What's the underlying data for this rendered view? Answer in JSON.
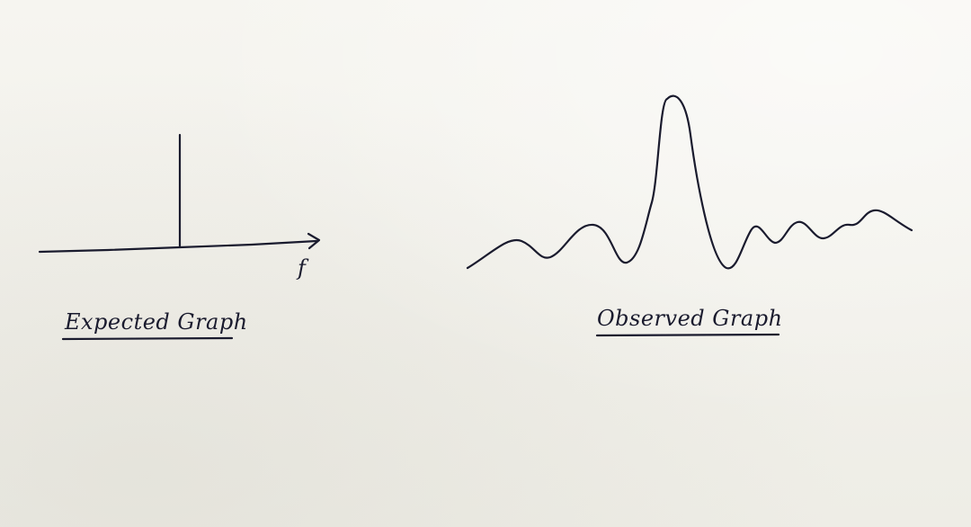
{
  "expected": {
    "caption": "Expected Graph",
    "axis_label": "f"
  },
  "observed": {
    "caption": "Observed Graph"
  },
  "colors": {
    "ink": "#1a1b2e",
    "paper": "#f1f0ea"
  }
}
